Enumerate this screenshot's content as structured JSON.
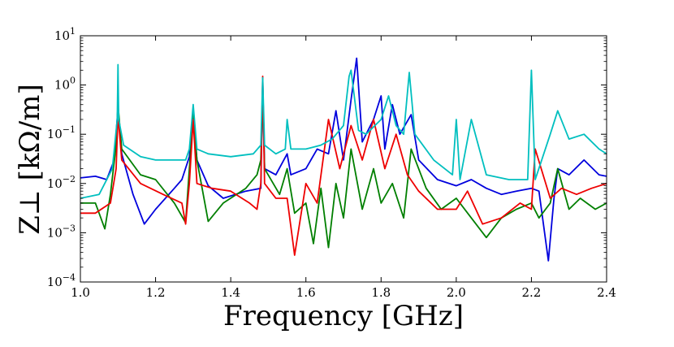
{
  "chart_data": {
    "type": "line",
    "title": "",
    "xlabel": "Frequency [GHz]",
    "ylabel": "Z⊥ [kΩ/m]",
    "xlim": [
      1.0,
      2.4
    ],
    "ylim": [
      0.0001,
      10
    ],
    "yscale": "log",
    "grid": false,
    "x_ticks": [
      1.0,
      1.2,
      1.4,
      1.6,
      1.8,
      2.0,
      2.2,
      2.4
    ],
    "x_tick_labels": [
      "1.0",
      "1.2",
      "1.4",
      "1.6",
      "1.8",
      "2.0",
      "2.2",
      "2.4"
    ],
    "y_ticks": [
      0.0001,
      0.001,
      0.01,
      0.1,
      1,
      10
    ],
    "y_tick_exponents": [
      "−4",
      "−3",
      "−2",
      "−1",
      "0",
      "1"
    ],
    "y_tick_base": "10",
    "series": [
      {
        "name": "blue",
        "color": "#0000dd",
        "x": [
          1.0,
          1.04,
          1.07,
          1.09,
          1.1,
          1.11,
          1.14,
          1.17,
          1.2,
          1.25,
          1.27,
          1.29,
          1.3,
          1.31,
          1.34,
          1.38,
          1.44,
          1.48,
          1.485,
          1.49,
          1.52,
          1.55,
          1.56,
          1.6,
          1.63,
          1.66,
          1.68,
          1.7,
          1.72,
          1.735,
          1.75,
          1.78,
          1.8,
          1.81,
          1.83,
          1.85,
          1.88,
          1.9,
          1.95,
          2.0,
          2.04,
          2.08,
          2.12,
          2.16,
          2.2,
          2.22,
          2.245,
          2.26,
          2.27,
          2.3,
          2.34,
          2.38,
          2.4
        ],
        "y": [
          0.013,
          0.014,
          0.012,
          0.03,
          0.35,
          0.04,
          0.006,
          0.0015,
          0.003,
          0.008,
          0.012,
          0.035,
          0.32,
          0.03,
          0.009,
          0.005,
          0.007,
          0.008,
          1.2,
          0.02,
          0.015,
          0.04,
          0.015,
          0.02,
          0.05,
          0.04,
          0.3,
          0.03,
          0.5,
          3.5,
          0.07,
          0.2,
          0.6,
          0.05,
          0.4,
          0.1,
          0.25,
          0.03,
          0.012,
          0.009,
          0.012,
          0.008,
          0.006,
          0.007,
          0.008,
          0.007,
          0.00027,
          0.005,
          0.02,
          0.015,
          0.03,
          0.015,
          0.014
        ]
      },
      {
        "name": "green",
        "color": "#007f00",
        "x": [
          1.0,
          1.04,
          1.065,
          1.08,
          1.095,
          1.1,
          1.11,
          1.16,
          1.2,
          1.25,
          1.28,
          1.29,
          1.3,
          1.31,
          1.34,
          1.38,
          1.44,
          1.47,
          1.48,
          1.485,
          1.49,
          1.53,
          1.55,
          1.57,
          1.6,
          1.62,
          1.64,
          1.66,
          1.68,
          1.7,
          1.72,
          1.75,
          1.78,
          1.8,
          1.83,
          1.86,
          1.88,
          1.92,
          1.96,
          2.0,
          2.04,
          2.08,
          2.12,
          2.16,
          2.2,
          2.22,
          2.25,
          2.27,
          2.3,
          2.33,
          2.37,
          2.4
        ],
        "y": [
          0.004,
          0.004,
          0.0012,
          0.006,
          0.06,
          0.4,
          0.05,
          0.015,
          0.012,
          0.004,
          0.0016,
          0.02,
          0.25,
          0.03,
          0.0017,
          0.004,
          0.008,
          0.015,
          0.03,
          0.8,
          0.02,
          0.006,
          0.02,
          0.0025,
          0.004,
          0.0006,
          0.008,
          0.0005,
          0.01,
          0.002,
          0.05,
          0.003,
          0.02,
          0.004,
          0.01,
          0.002,
          0.05,
          0.008,
          0.003,
          0.005,
          0.002,
          0.0008,
          0.002,
          0.003,
          0.004,
          0.002,
          0.004,
          0.02,
          0.003,
          0.005,
          0.003,
          0.004
        ]
      },
      {
        "name": "red",
        "color": "#ee0000",
        "x": [
          1.0,
          1.04,
          1.08,
          1.095,
          1.1,
          1.11,
          1.16,
          1.22,
          1.27,
          1.28,
          1.29,
          1.3,
          1.31,
          1.35,
          1.4,
          1.45,
          1.47,
          1.48,
          1.485,
          1.49,
          1.52,
          1.55,
          1.57,
          1.6,
          1.63,
          1.66,
          1.69,
          1.72,
          1.75,
          1.78,
          1.81,
          1.84,
          1.87,
          1.9,
          1.95,
          2.0,
          2.03,
          2.07,
          2.12,
          2.17,
          2.2,
          2.21,
          2.25,
          2.28,
          2.32,
          2.36,
          2.4
        ],
        "y": [
          0.0025,
          0.0025,
          0.004,
          0.02,
          0.25,
          0.03,
          0.01,
          0.006,
          0.004,
          0.0015,
          0.01,
          0.2,
          0.01,
          0.008,
          0.007,
          0.004,
          0.003,
          0.01,
          1.5,
          0.01,
          0.005,
          0.005,
          0.00035,
          0.01,
          0.004,
          0.2,
          0.02,
          0.15,
          0.03,
          0.2,
          0.02,
          0.1,
          0.015,
          0.007,
          0.003,
          0.003,
          0.007,
          0.0015,
          0.002,
          0.004,
          0.003,
          0.05,
          0.005,
          0.008,
          0.006,
          0.008,
          0.01
        ]
      },
      {
        "name": "cyan",
        "color": "#00bfbf",
        "x": [
          1.0,
          1.05,
          1.085,
          1.098,
          1.1,
          1.102,
          1.115,
          1.16,
          1.2,
          1.26,
          1.28,
          1.29,
          1.3,
          1.31,
          1.34,
          1.4,
          1.46,
          1.48,
          1.485,
          1.49,
          1.52,
          1.545,
          1.55,
          1.56,
          1.6,
          1.64,
          1.67,
          1.7,
          1.715,
          1.72,
          1.74,
          1.76,
          1.8,
          1.82,
          1.84,
          1.86,
          1.875,
          1.89,
          1.94,
          1.99,
          2.0,
          2.01,
          2.04,
          2.08,
          2.14,
          2.19,
          2.2,
          2.21,
          2.25,
          2.27,
          2.3,
          2.34,
          2.38,
          2.4
        ],
        "y": [
          0.005,
          0.006,
          0.02,
          0.2,
          2.6,
          0.2,
          0.06,
          0.035,
          0.03,
          0.03,
          0.03,
          0.05,
          0.4,
          0.05,
          0.04,
          0.035,
          0.04,
          0.06,
          1.4,
          0.06,
          0.04,
          0.05,
          0.2,
          0.05,
          0.05,
          0.06,
          0.08,
          0.15,
          1.5,
          2.0,
          0.12,
          0.1,
          0.2,
          0.6,
          0.15,
          0.1,
          1.8,
          0.1,
          0.03,
          0.015,
          0.2,
          0.012,
          0.2,
          0.015,
          0.012,
          0.012,
          2.0,
          0.012,
          0.1,
          0.3,
          0.08,
          0.1,
          0.05,
          0.04
        ]
      }
    ]
  }
}
